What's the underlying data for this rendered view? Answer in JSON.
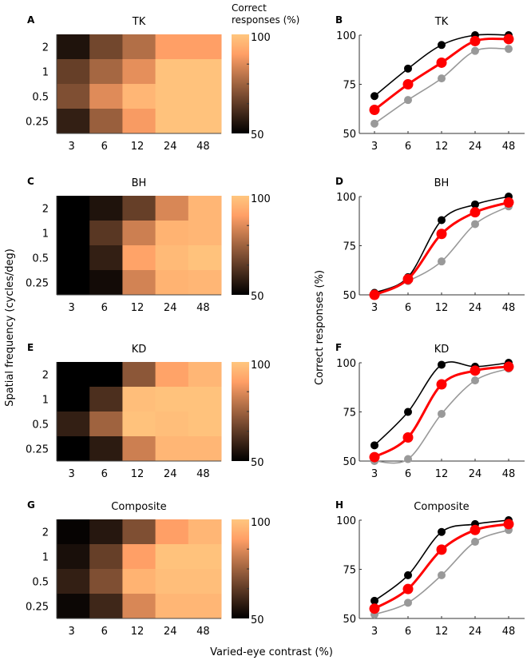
{
  "figure": {
    "ylabel_heatmaps": "Spatial frequency (cycles/deg)",
    "ylabel_curves": "Correct responses (%)",
    "xlabel": "Varied-eye contrast (%)",
    "colorbar_label": [
      "Correct",
      "responses (%)"
    ],
    "colorbar_ticks": [
      "100",
      "50"
    ]
  },
  "chart_data": [
    {
      "panel": "A",
      "type": "heatmap",
      "title": "TK",
      "x_ticks": [
        "3",
        "6",
        "12",
        "24",
        "48"
      ],
      "y_ticks": [
        "2",
        "1",
        "0.5",
        "0.25"
      ],
      "colormap": "copper",
      "clim": [
        50,
        100
      ],
      "values": [
        [
          55,
          68,
          78,
          90,
          90
        ],
        [
          66,
          76,
          86,
          99,
          99
        ],
        [
          70,
          85,
          96,
          99,
          99
        ],
        [
          58,
          74,
          89,
          99,
          99
        ]
      ]
    },
    {
      "panel": "B",
      "type": "line",
      "title": "TK",
      "x": [
        3,
        6,
        12,
        24,
        48
      ],
      "x_scale": "log",
      "ylim": [
        50,
        100
      ],
      "y_ticks": [
        "50",
        "75",
        "100"
      ],
      "series": [
        {
          "color": "#000000",
          "values": [
            69,
            83,
            95,
            100,
            100
          ]
        },
        {
          "color": "#ff0000",
          "values": [
            62,
            75,
            86,
            97,
            98
          ]
        },
        {
          "color": "#999999",
          "values": [
            55,
            67,
            78,
            92,
            93
          ]
        }
      ]
    },
    {
      "panel": "C",
      "type": "heatmap",
      "title": "BH",
      "x_ticks": [
        "3",
        "6",
        "12",
        "24",
        "48"
      ],
      "y_ticks": [
        "2",
        "1",
        "0.5",
        "0.25"
      ],
      "colormap": "copper",
      "clim": [
        50,
        100
      ],
      "values": [
        [
          50,
          55,
          66,
          84,
          96
        ],
        [
          50,
          64,
          82,
          95,
          96
        ],
        [
          50,
          58,
          91,
          97,
          99
        ],
        [
          50,
          53,
          83,
          95,
          96
        ]
      ]
    },
    {
      "panel": "D",
      "type": "line",
      "title": "BH",
      "x": [
        3,
        6,
        12,
        24,
        48
      ],
      "x_scale": "log",
      "ylim": [
        50,
        100
      ],
      "y_ticks": [
        "50",
        "75",
        "100"
      ],
      "series": [
        {
          "color": "#000000",
          "values": [
            51,
            59,
            88,
            96,
            100
          ]
        },
        {
          "color": "#ff0000",
          "values": [
            50,
            58,
            81,
            92,
            97
          ]
        },
        {
          "color": "#999999",
          "values": [
            51,
            57,
            67,
            86,
            95
          ]
        }
      ]
    },
    {
      "panel": "E",
      "type": "heatmap",
      "title": "KD",
      "x_ticks": [
        "3",
        "6",
        "12",
        "24",
        "48"
      ],
      "y_ticks": [
        "2",
        "1",
        "0.5",
        "0.25"
      ],
      "colormap": "copper",
      "clim": [
        50,
        100
      ],
      "values": [
        [
          50,
          50,
          72,
          91,
          96
        ],
        [
          50,
          62,
          98,
          99,
          99
        ],
        [
          58,
          75,
          99,
          98,
          99
        ],
        [
          50,
          57,
          82,
          96,
          96
        ]
      ]
    },
    {
      "panel": "F",
      "type": "line",
      "title": "KD",
      "x": [
        3,
        6,
        12,
        24,
        48
      ],
      "x_scale": "log",
      "ylim": [
        50,
        100
      ],
      "y_ticks": [
        "50",
        "75",
        "100"
      ],
      "series": [
        {
          "color": "#000000",
          "values": [
            58,
            75,
            99,
            98,
            100
          ]
        },
        {
          "color": "#ff0000",
          "values": [
            52,
            62,
            89,
            96,
            98
          ]
        },
        {
          "color": "#999999",
          "values": [
            50,
            51,
            74,
            91,
            97
          ]
        }
      ]
    },
    {
      "panel": "G",
      "type": "heatmap",
      "title": "Composite",
      "x_ticks": [
        "3",
        "6",
        "12",
        "24",
        "48"
      ],
      "y_ticks": [
        "2",
        "1",
        "0.5",
        "0.25"
      ],
      "colormap": "copper",
      "clim": [
        50,
        100
      ],
      "values": [
        [
          51,
          56,
          70,
          90,
          96
        ],
        [
          54,
          66,
          90,
          99,
          99
        ],
        [
          58,
          70,
          95,
          98,
          98
        ],
        [
          52,
          60,
          84,
          96,
          96
        ]
      ]
    },
    {
      "panel": "H",
      "type": "line",
      "title": "Composite",
      "x": [
        3,
        6,
        12,
        24,
        48
      ],
      "x_scale": "log",
      "ylim": [
        50,
        100
      ],
      "y_ticks": [
        "50",
        "75",
        "100"
      ],
      "series": [
        {
          "color": "#000000",
          "values": [
            59,
            72,
            94,
            98,
            100
          ]
        },
        {
          "color": "#ff0000",
          "values": [
            55,
            65,
            85,
            95,
            98
          ]
        },
        {
          "color": "#999999",
          "values": [
            52,
            58,
            72,
            89,
            95
          ]
        }
      ]
    }
  ]
}
